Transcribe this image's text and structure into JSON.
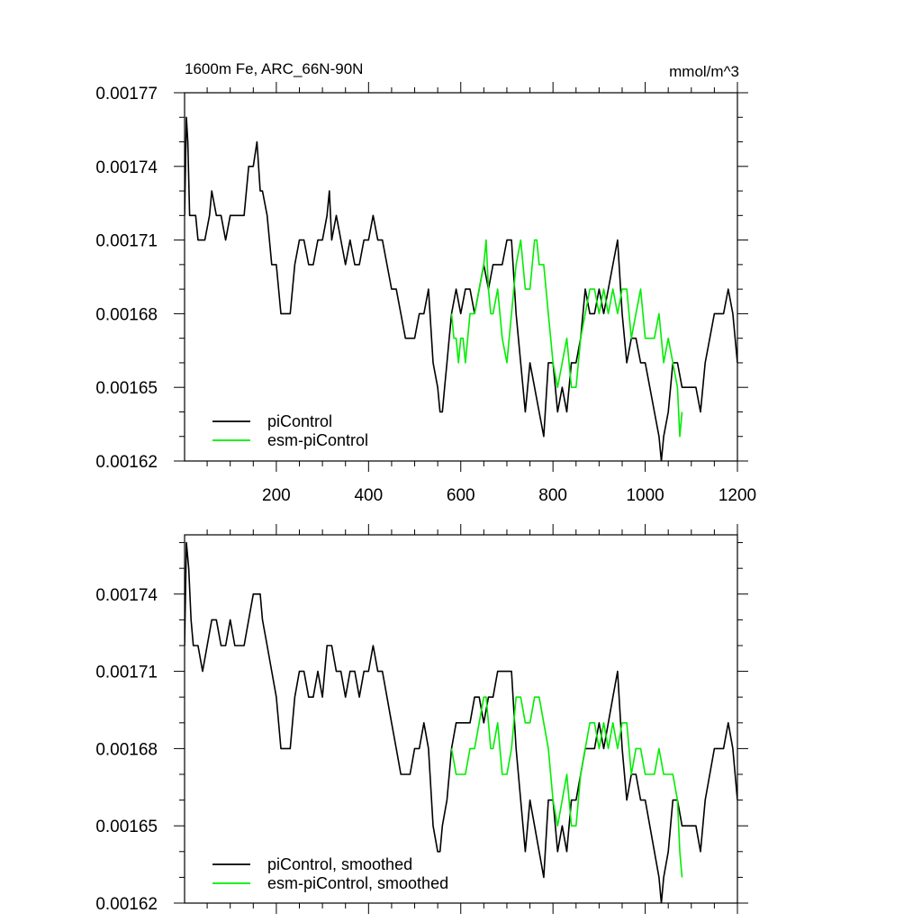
{
  "chart_data": [
    {
      "type": "line",
      "title": "1600m Fe, ARC_66N-90N",
      "units": "mmol/m^3",
      "xlim": [
        1,
        1200
      ],
      "ylim": [
        0.00162,
        0.00177
      ],
      "xticks": [
        200,
        400,
        600,
        800,
        1000,
        1200
      ],
      "yticks": [
        "0.00162",
        "0.00165",
        "0.00168",
        "0.00171",
        "0.00174",
        "0.00177"
      ],
      "legend_position": "bottom-left",
      "series": [
        {
          "name": "piControl",
          "color": "#000000",
          "x": [
            1,
            5,
            8,
            12,
            18,
            25,
            30,
            38,
            45,
            55,
            60,
            70,
            80,
            90,
            100,
            110,
            120,
            130,
            140,
            150,
            158,
            165,
            170,
            180,
            190,
            200,
            210,
            220,
            230,
            240,
            250,
            260,
            270,
            280,
            290,
            300,
            310,
            315,
            320,
            330,
            340,
            350,
            360,
            370,
            380,
            390,
            400,
            410,
            420,
            430,
            440,
            450,
            460,
            470,
            480,
            490,
            500,
            510,
            520,
            530,
            540,
            550,
            555,
            560,
            565,
            570,
            575,
            580,
            590,
            600,
            610,
            620,
            630,
            640,
            650,
            660,
            670,
            680,
            690,
            700,
            710,
            720,
            730,
            740,
            750,
            760,
            770,
            780,
            790,
            800,
            810,
            820,
            830,
            840,
            850,
            860,
            870,
            880,
            890,
            900,
            910,
            920,
            930,
            940,
            950,
            960,
            970,
            980,
            990,
            1000,
            1010,
            1020,
            1030,
            1035,
            1040,
            1050,
            1060,
            1070,
            1080,
            1090,
            1100,
            1110,
            1120,
            1130,
            1140,
            1150,
            1160,
            1170,
            1180,
            1190,
            1200
          ],
          "y": [
            0.00172,
            0.00176,
            0.00175,
            0.00172,
            0.00172,
            0.00172,
            0.00171,
            0.00171,
            0.00171,
            0.00172,
            0.00173,
            0.00172,
            0.00172,
            0.00171,
            0.00172,
            0.00172,
            0.00172,
            0.00172,
            0.00174,
            0.00174,
            0.00175,
            0.00173,
            0.00173,
            0.00172,
            0.0017,
            0.0017,
            0.00168,
            0.00168,
            0.00168,
            0.0017,
            0.00171,
            0.00171,
            0.0017,
            0.0017,
            0.00171,
            0.00171,
            0.00172,
            0.00173,
            0.00171,
            0.00172,
            0.00171,
            0.0017,
            0.00171,
            0.0017,
            0.0017,
            0.00171,
            0.00171,
            0.00172,
            0.00171,
            0.00171,
            0.0017,
            0.00169,
            0.00169,
            0.00168,
            0.00167,
            0.00167,
            0.00167,
            0.00168,
            0.00168,
            0.00169,
            0.00166,
            0.00165,
            0.00164,
            0.00164,
            0.00165,
            0.00166,
            0.00167,
            0.00168,
            0.00169,
            0.00168,
            0.00169,
            0.00169,
            0.00168,
            0.00169,
            0.0017,
            0.00169,
            0.0017,
            0.0017,
            0.0017,
            0.00171,
            0.00171,
            0.00168,
            0.00166,
            0.00164,
            0.00166,
            0.00165,
            0.00164,
            0.00163,
            0.00166,
            0.00166,
            0.00164,
            0.00165,
            0.00164,
            0.00166,
            0.00166,
            0.00167,
            0.00169,
            0.00168,
            0.00168,
            0.00169,
            0.00168,
            0.00169,
            0.0017,
            0.00171,
            0.00168,
            0.00166,
            0.00167,
            0.00167,
            0.00166,
            0.00166,
            0.00165,
            0.00164,
            0.00163,
            0.00162,
            0.00163,
            0.00164,
            0.00166,
            0.00166,
            0.00165,
            0.00165,
            0.00165,
            0.00165,
            0.00164,
            0.00166,
            0.00167,
            0.00168,
            0.00168,
            0.00168,
            0.00169,
            0.00168,
            0.00166
          ]
        },
        {
          "name": "esm-piControl",
          "color": "#00ee00",
          "x": [
            580,
            585,
            590,
            595,
            600,
            605,
            610,
            620,
            630,
            640,
            650,
            655,
            660,
            665,
            670,
            680,
            690,
            700,
            705,
            710,
            720,
            730,
            740,
            750,
            760,
            765,
            770,
            780,
            790,
            800,
            810,
            820,
            830,
            840,
            850,
            860,
            870,
            880,
            890,
            900,
            910,
            920,
            930,
            940,
            950,
            960,
            970,
            980,
            990,
            1000,
            1010,
            1020,
            1030,
            1040,
            1050,
            1060,
            1070,
            1075,
            1080
          ],
          "y": [
            0.00168,
            0.00167,
            0.00167,
            0.00166,
            0.00167,
            0.00167,
            0.00166,
            0.00168,
            0.00168,
            0.00169,
            0.0017,
            0.00171,
            0.00169,
            0.00168,
            0.00168,
            0.00169,
            0.00167,
            0.00166,
            0.00167,
            0.00168,
            0.0017,
            0.00171,
            0.00169,
            0.00169,
            0.00171,
            0.00171,
            0.0017,
            0.0017,
            0.00168,
            0.00166,
            0.00165,
            0.00166,
            0.00167,
            0.00165,
            0.00165,
            0.00167,
            0.00168,
            0.00169,
            0.00169,
            0.00168,
            0.00169,
            0.00168,
            0.00169,
            0.00168,
            0.00169,
            0.00169,
            0.00167,
            0.00168,
            0.00169,
            0.00167,
            0.00167,
            0.00167,
            0.00168,
            0.00166,
            0.00167,
            0.00166,
            0.00165,
            0.00163,
            0.00164
          ]
        }
      ]
    },
    {
      "type": "line",
      "xlim": [
        1,
        1200
      ],
      "ylim": [
        0.00162,
        0.001763
      ],
      "xticks": [
        200,
        400,
        600,
        800,
        1000,
        1200
      ],
      "yticks": [
        "0.00162",
        "0.00165",
        "0.00168",
        "0.00171",
        "0.00174"
      ],
      "legend_position": "bottom-left",
      "series": [
        {
          "name": "piControl, smoothed",
          "color": "#000000",
          "x": [
            1,
            5,
            10,
            15,
            20,
            30,
            40,
            50,
            60,
            70,
            80,
            90,
            100,
            110,
            120,
            130,
            140,
            150,
            158,
            165,
            170,
            180,
            190,
            200,
            210,
            220,
            230,
            240,
            250,
            260,
            270,
            280,
            290,
            300,
            310,
            320,
            330,
            340,
            350,
            360,
            370,
            380,
            390,
            400,
            410,
            420,
            430,
            440,
            450,
            460,
            470,
            480,
            490,
            500,
            510,
            520,
            530,
            540,
            550,
            555,
            560,
            570,
            580,
            590,
            600,
            610,
            620,
            630,
            640,
            650,
            660,
            670,
            680,
            690,
            700,
            710,
            720,
            730,
            740,
            750,
            760,
            770,
            780,
            790,
            800,
            810,
            820,
            830,
            840,
            850,
            860,
            870,
            880,
            890,
            900,
            910,
            920,
            930,
            940,
            950,
            960,
            970,
            980,
            990,
            1000,
            1010,
            1020,
            1030,
            1035,
            1040,
            1050,
            1060,
            1070,
            1080,
            1090,
            1100,
            1110,
            1120,
            1130,
            1140,
            1150,
            1160,
            1170,
            1180,
            1190,
            1200
          ],
          "y": [
            0.00172,
            0.00176,
            0.00175,
            0.00173,
            0.00172,
            0.00172,
            0.00171,
            0.00172,
            0.00173,
            0.00173,
            0.00172,
            0.00172,
            0.00173,
            0.00172,
            0.00172,
            0.00172,
            0.00173,
            0.00174,
            0.00174,
            0.00174,
            0.00173,
            0.00172,
            0.00171,
            0.0017,
            0.00168,
            0.00168,
            0.00168,
            0.0017,
            0.00171,
            0.00171,
            0.0017,
            0.0017,
            0.00171,
            0.0017,
            0.00172,
            0.00172,
            0.00171,
            0.00171,
            0.0017,
            0.00171,
            0.00171,
            0.0017,
            0.00171,
            0.00171,
            0.00172,
            0.00171,
            0.00171,
            0.0017,
            0.00169,
            0.00168,
            0.00167,
            0.00167,
            0.00167,
            0.00168,
            0.00168,
            0.00169,
            0.00168,
            0.00165,
            0.00164,
            0.00164,
            0.00165,
            0.00166,
            0.00168,
            0.00169,
            0.00169,
            0.00169,
            0.00169,
            0.0017,
            0.0017,
            0.00169,
            0.0017,
            0.0017,
            0.00171,
            0.00171,
            0.00171,
            0.00171,
            0.00168,
            0.00166,
            0.00164,
            0.00166,
            0.00165,
            0.00164,
            0.00163,
            0.00166,
            0.00166,
            0.00164,
            0.00165,
            0.00164,
            0.00166,
            0.00166,
            0.00167,
            0.00168,
            0.00168,
            0.00168,
            0.00169,
            0.00168,
            0.00169,
            0.0017,
            0.00171,
            0.00168,
            0.00166,
            0.00167,
            0.00167,
            0.00166,
            0.00166,
            0.00165,
            0.00164,
            0.00163,
            0.00162,
            0.00163,
            0.00164,
            0.00166,
            0.00166,
            0.00165,
            0.00165,
            0.00165,
            0.00165,
            0.00164,
            0.00166,
            0.00167,
            0.00168,
            0.00168,
            0.00168,
            0.00169,
            0.00168,
            0.00166
          ]
        },
        {
          "name": "esm-piControl, smoothed",
          "color": "#00ee00",
          "x": [
            580,
            590,
            600,
            610,
            620,
            630,
            640,
            650,
            655,
            660,
            665,
            670,
            680,
            690,
            700,
            710,
            720,
            730,
            740,
            750,
            760,
            770,
            780,
            790,
            800,
            810,
            820,
            830,
            840,
            850,
            860,
            870,
            880,
            890,
            900,
            910,
            920,
            930,
            940,
            950,
            960,
            970,
            980,
            990,
            1000,
            1010,
            1020,
            1030,
            1040,
            1050,
            1060,
            1070,
            1075,
            1080
          ],
          "y": [
            0.00168,
            0.00167,
            0.00167,
            0.00167,
            0.00168,
            0.00168,
            0.00169,
            0.0017,
            0.0017,
            0.00169,
            0.00168,
            0.00168,
            0.00169,
            0.00167,
            0.00167,
            0.00168,
            0.0017,
            0.0017,
            0.00169,
            0.00169,
            0.0017,
            0.0017,
            0.00169,
            0.00168,
            0.00166,
            0.00165,
            0.00166,
            0.00167,
            0.00165,
            0.00165,
            0.00167,
            0.00168,
            0.00169,
            0.00169,
            0.00168,
            0.00169,
            0.00168,
            0.00169,
            0.00168,
            0.00169,
            0.00169,
            0.00167,
            0.00168,
            0.00168,
            0.00167,
            0.00167,
            0.00167,
            0.00168,
            0.00167,
            0.00167,
            0.00167,
            0.00166,
            0.00164,
            0.00163
          ]
        }
      ]
    }
  ]
}
